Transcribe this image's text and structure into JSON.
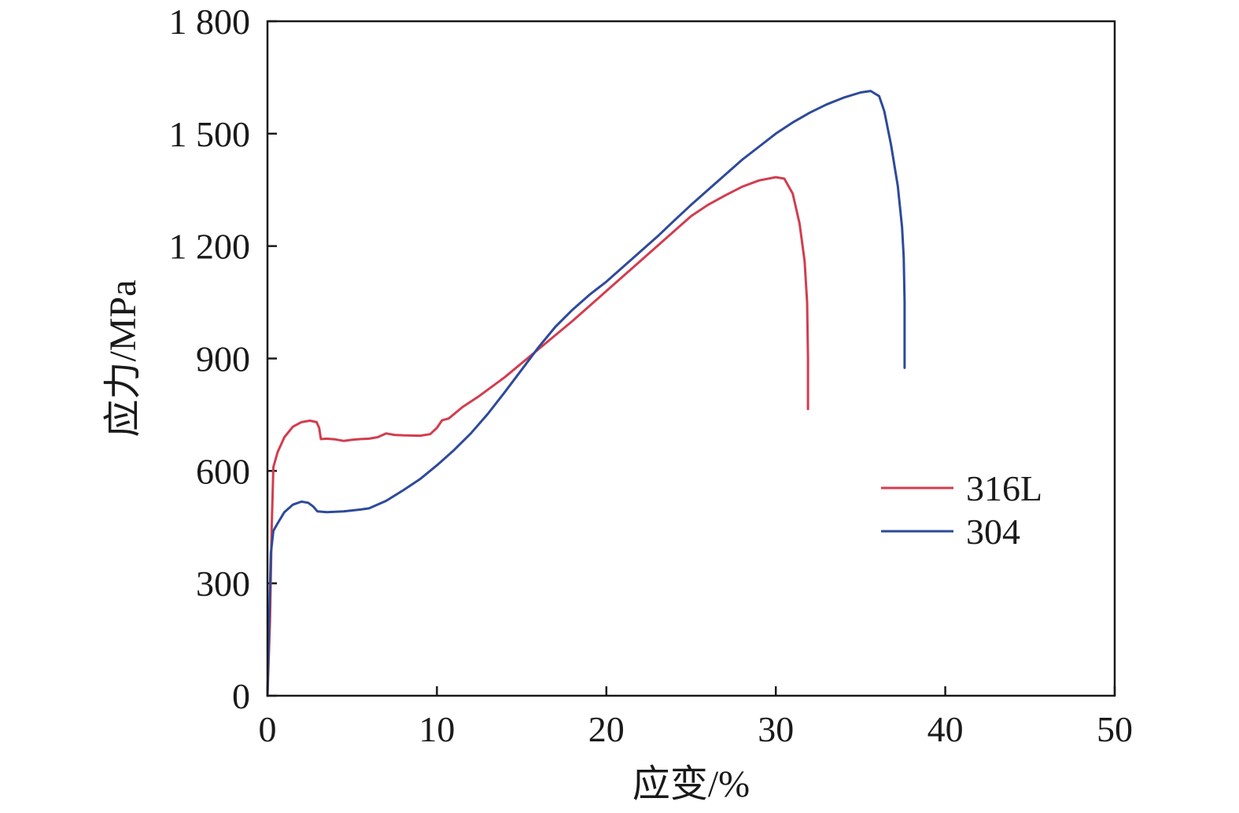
{
  "chart_data": {
    "type": "line",
    "title": "",
    "xlabel": "应变/%",
    "ylabel": "应力/MPa",
    "xlim": [
      0,
      50
    ],
    "ylim": [
      0,
      1800
    ],
    "x_ticks": [
      0,
      10,
      20,
      30,
      40,
      50
    ],
    "x_tick_labels": [
      "0",
      "10",
      "20",
      "30",
      "40",
      "50"
    ],
    "y_ticks": [
      0,
      300,
      600,
      900,
      1200,
      1500,
      1800
    ],
    "y_tick_labels": [
      "0",
      "300",
      "600",
      "900",
      "1 200",
      "1 500",
      "1 800"
    ],
    "grid": false,
    "legend_position": "right",
    "series": [
      {
        "name": "316L",
        "color": "#d23d4e",
        "points": [
          [
            0,
            0
          ],
          [
            0.15,
            200
          ],
          [
            0.25,
            450
          ],
          [
            0.35,
            610
          ],
          [
            0.6,
            650
          ],
          [
            1.0,
            690
          ],
          [
            1.5,
            718
          ],
          [
            2.0,
            730
          ],
          [
            2.5,
            734
          ],
          [
            2.9,
            730
          ],
          [
            3.05,
            715
          ],
          [
            3.15,
            685
          ],
          [
            3.5,
            686
          ],
          [
            4.0,
            684
          ],
          [
            4.5,
            680
          ],
          [
            5.0,
            683
          ],
          [
            5.5,
            685
          ],
          [
            6.0,
            686
          ],
          [
            6.5,
            690
          ],
          [
            7.0,
            700
          ],
          [
            7.5,
            696
          ],
          [
            8.0,
            695
          ],
          [
            9.0,
            694
          ],
          [
            9.6,
            698
          ],
          [
            10.0,
            715
          ],
          [
            10.3,
            735
          ],
          [
            10.7,
            740
          ],
          [
            11.5,
            770
          ],
          [
            12.5,
            800
          ],
          [
            14.0,
            850
          ],
          [
            16.0,
            925
          ],
          [
            18.0,
            1000
          ],
          [
            20.0,
            1080
          ],
          [
            22.0,
            1160
          ],
          [
            24.0,
            1240
          ],
          [
            25.0,
            1280
          ],
          [
            26.0,
            1310
          ],
          [
            27.0,
            1335
          ],
          [
            28.0,
            1358
          ],
          [
            29.0,
            1375
          ],
          [
            30.0,
            1384
          ],
          [
            30.5,
            1380
          ],
          [
            31.0,
            1340
          ],
          [
            31.4,
            1260
          ],
          [
            31.7,
            1160
          ],
          [
            31.85,
            1050
          ],
          [
            31.9,
            900
          ],
          [
            31.9,
            765
          ]
        ]
      },
      {
        "name": "304",
        "color": "#2d4a9a",
        "points": [
          [
            0,
            0
          ],
          [
            0.1,
            200
          ],
          [
            0.2,
            380
          ],
          [
            0.35,
            440
          ],
          [
            0.6,
            460
          ],
          [
            1.0,
            490
          ],
          [
            1.5,
            510
          ],
          [
            2.0,
            518
          ],
          [
            2.4,
            515
          ],
          [
            2.7,
            505
          ],
          [
            2.95,
            492
          ],
          [
            3.5,
            490
          ],
          [
            4.5,
            492
          ],
          [
            5.5,
            497
          ],
          [
            6.0,
            500
          ],
          [
            7.0,
            520
          ],
          [
            8.0,
            548
          ],
          [
            9.0,
            578
          ],
          [
            10.0,
            615
          ],
          [
            11.0,
            655
          ],
          [
            12.0,
            700
          ],
          [
            13.0,
            752
          ],
          [
            14.0,
            810
          ],
          [
            15.0,
            870
          ],
          [
            16.0,
            930
          ],
          [
            17.0,
            985
          ],
          [
            18.0,
            1030
          ],
          [
            19.0,
            1070
          ],
          [
            20.0,
            1105
          ],
          [
            21.0,
            1145
          ],
          [
            22.0,
            1185
          ],
          [
            23.0,
            1225
          ],
          [
            24.0,
            1268
          ],
          [
            25.0,
            1310
          ],
          [
            26.0,
            1350
          ],
          [
            27.0,
            1390
          ],
          [
            28.0,
            1430
          ],
          [
            29.0,
            1465
          ],
          [
            30.0,
            1500
          ],
          [
            31.0,
            1530
          ],
          [
            32.0,
            1556
          ],
          [
            33.0,
            1578
          ],
          [
            34.0,
            1596
          ],
          [
            35.0,
            1610
          ],
          [
            35.6,
            1614
          ],
          [
            36.1,
            1600
          ],
          [
            36.4,
            1560
          ],
          [
            36.8,
            1470
          ],
          [
            37.2,
            1360
          ],
          [
            37.45,
            1250
          ],
          [
            37.55,
            1170
          ],
          [
            37.6,
            1050
          ],
          [
            37.6,
            875
          ]
        ]
      }
    ]
  }
}
